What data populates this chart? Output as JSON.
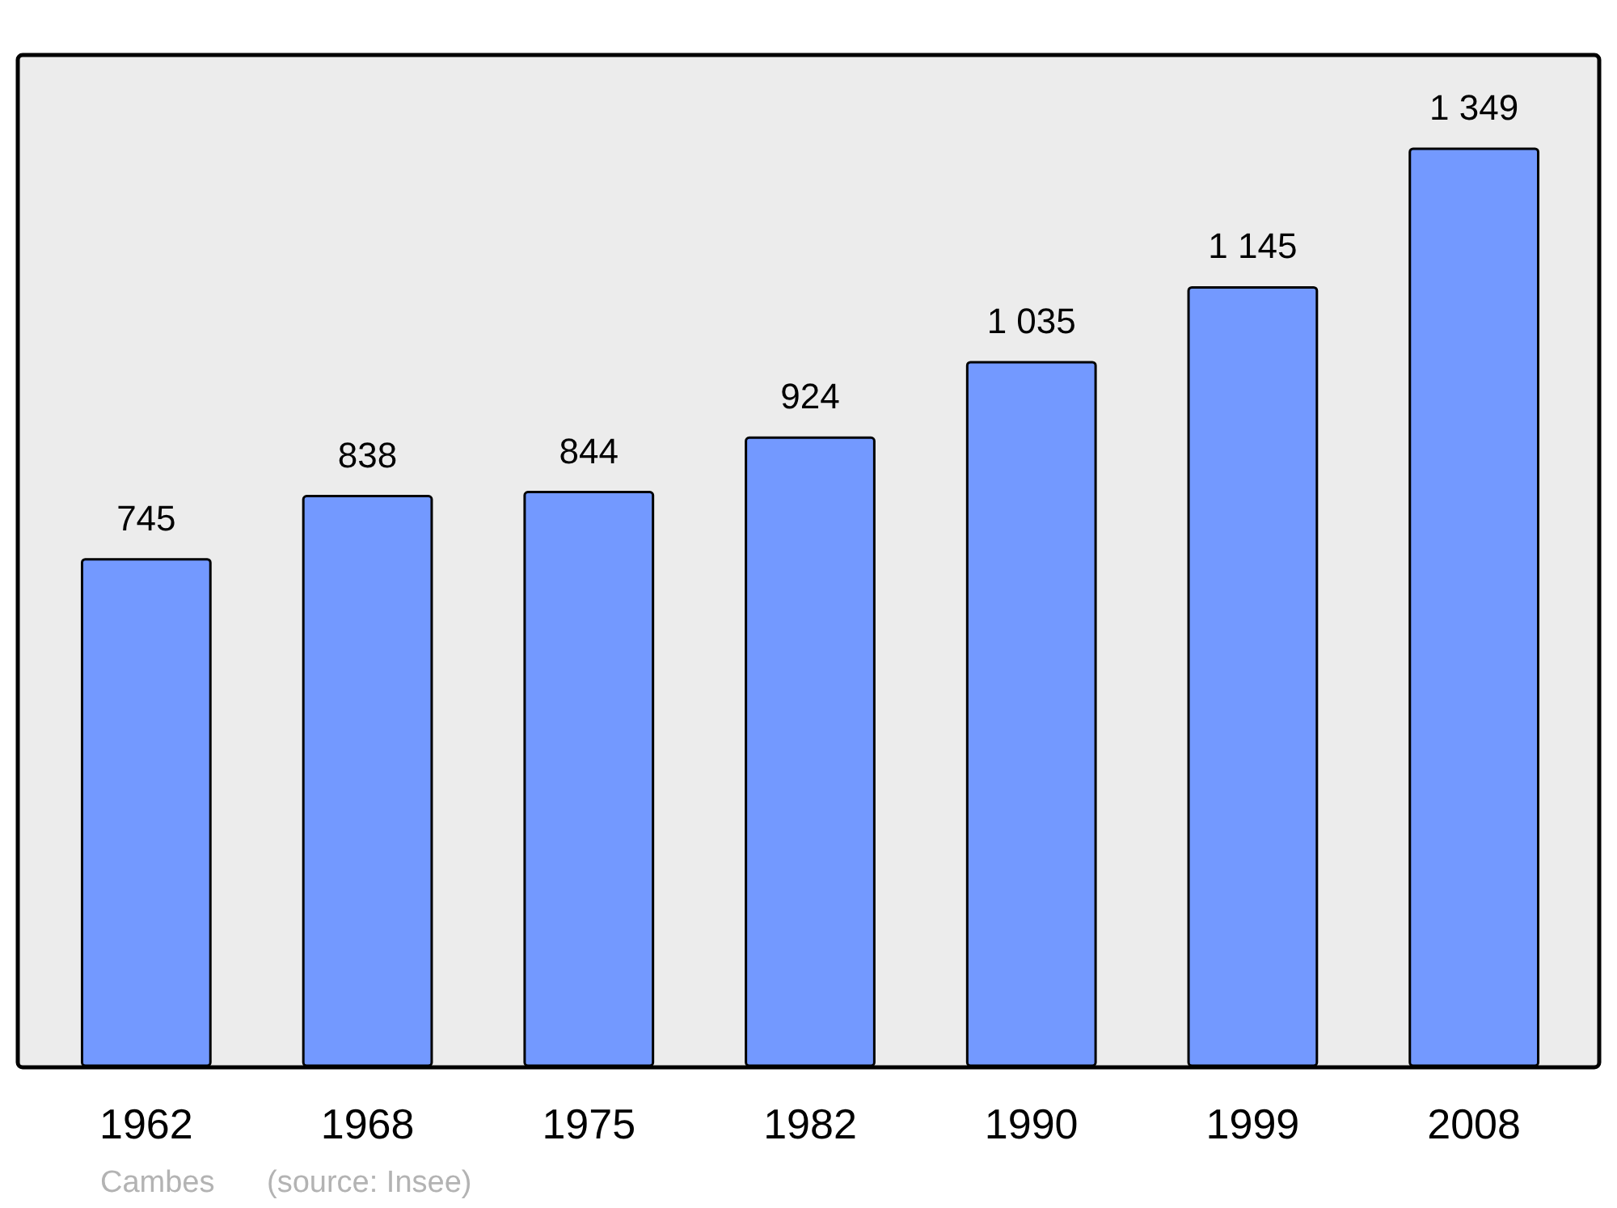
{
  "chart_data": {
    "type": "bar",
    "categories": [
      "1962",
      "1968",
      "1975",
      "1982",
      "1990",
      "1999",
      "2008"
    ],
    "values": [
      745,
      838,
      844,
      924,
      1035,
      1145,
      1349
    ],
    "value_labels": [
      "745",
      "838",
      "844",
      "924",
      "1 035",
      "1 145",
      "1 349"
    ],
    "color": "#7399ff",
    "annotations": [
      "Cambes",
      "(source: Insee)"
    ]
  }
}
